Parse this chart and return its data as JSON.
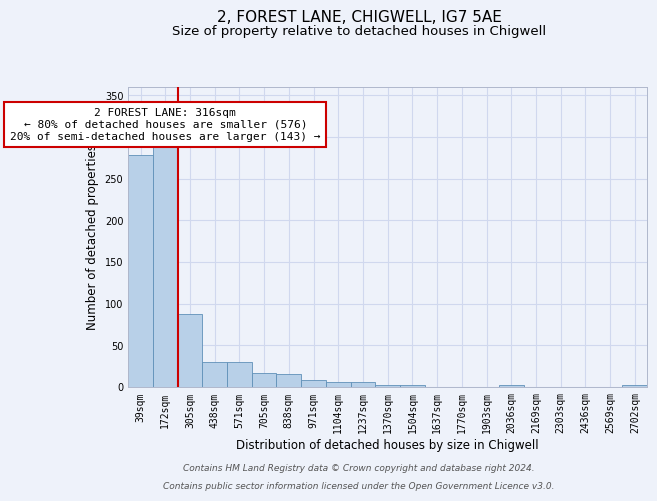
{
  "title_line1": "2, FOREST LANE, CHIGWELL, IG7 5AE",
  "title_line2": "Size of property relative to detached houses in Chigwell",
  "xlabel": "Distribution of detached houses by size in Chigwell",
  "ylabel": "Number of detached properties",
  "categories": [
    "39sqm",
    "172sqm",
    "305sqm",
    "438sqm",
    "571sqm",
    "705sqm",
    "838sqm",
    "971sqm",
    "1104sqm",
    "1237sqm",
    "1370sqm",
    "1504sqm",
    "1637sqm",
    "1770sqm",
    "1903sqm",
    "2036sqm",
    "2169sqm",
    "2303sqm",
    "2436sqm",
    "2569sqm",
    "2702sqm"
  ],
  "values": [
    278,
    290,
    88,
    30,
    30,
    17,
    16,
    8,
    6,
    6,
    3,
    3,
    0,
    0,
    0,
    3,
    0,
    0,
    0,
    0,
    3
  ],
  "bar_color": "#b8d0e8",
  "bar_edge_color": "#6090b8",
  "background_color": "#eef2fa",
  "grid_color": "#d0d8ee",
  "vline_x_idx": 2,
  "vline_color": "#cc0000",
  "ylim": [
    0,
    360
  ],
  "yticks": [
    0,
    50,
    100,
    150,
    200,
    250,
    300,
    350
  ],
  "annotation_line1": "2 FOREST LANE: 316sqm",
  "annotation_line2": "← 80% of detached houses are smaller (576)",
  "annotation_line3": "20% of semi-detached houses are larger (143) →",
  "annotation_box_color": "#ffffff",
  "annotation_box_edge": "#cc0000",
  "footer_line1": "Contains HM Land Registry data © Crown copyright and database right 2024.",
  "footer_line2": "Contains public sector information licensed under the Open Government Licence v3.0.",
  "title_fontsize": 11,
  "subtitle_fontsize": 9.5,
  "axis_label_fontsize": 8.5,
  "tick_fontsize": 7,
  "annotation_fontsize": 8,
  "footer_fontsize": 6.5
}
